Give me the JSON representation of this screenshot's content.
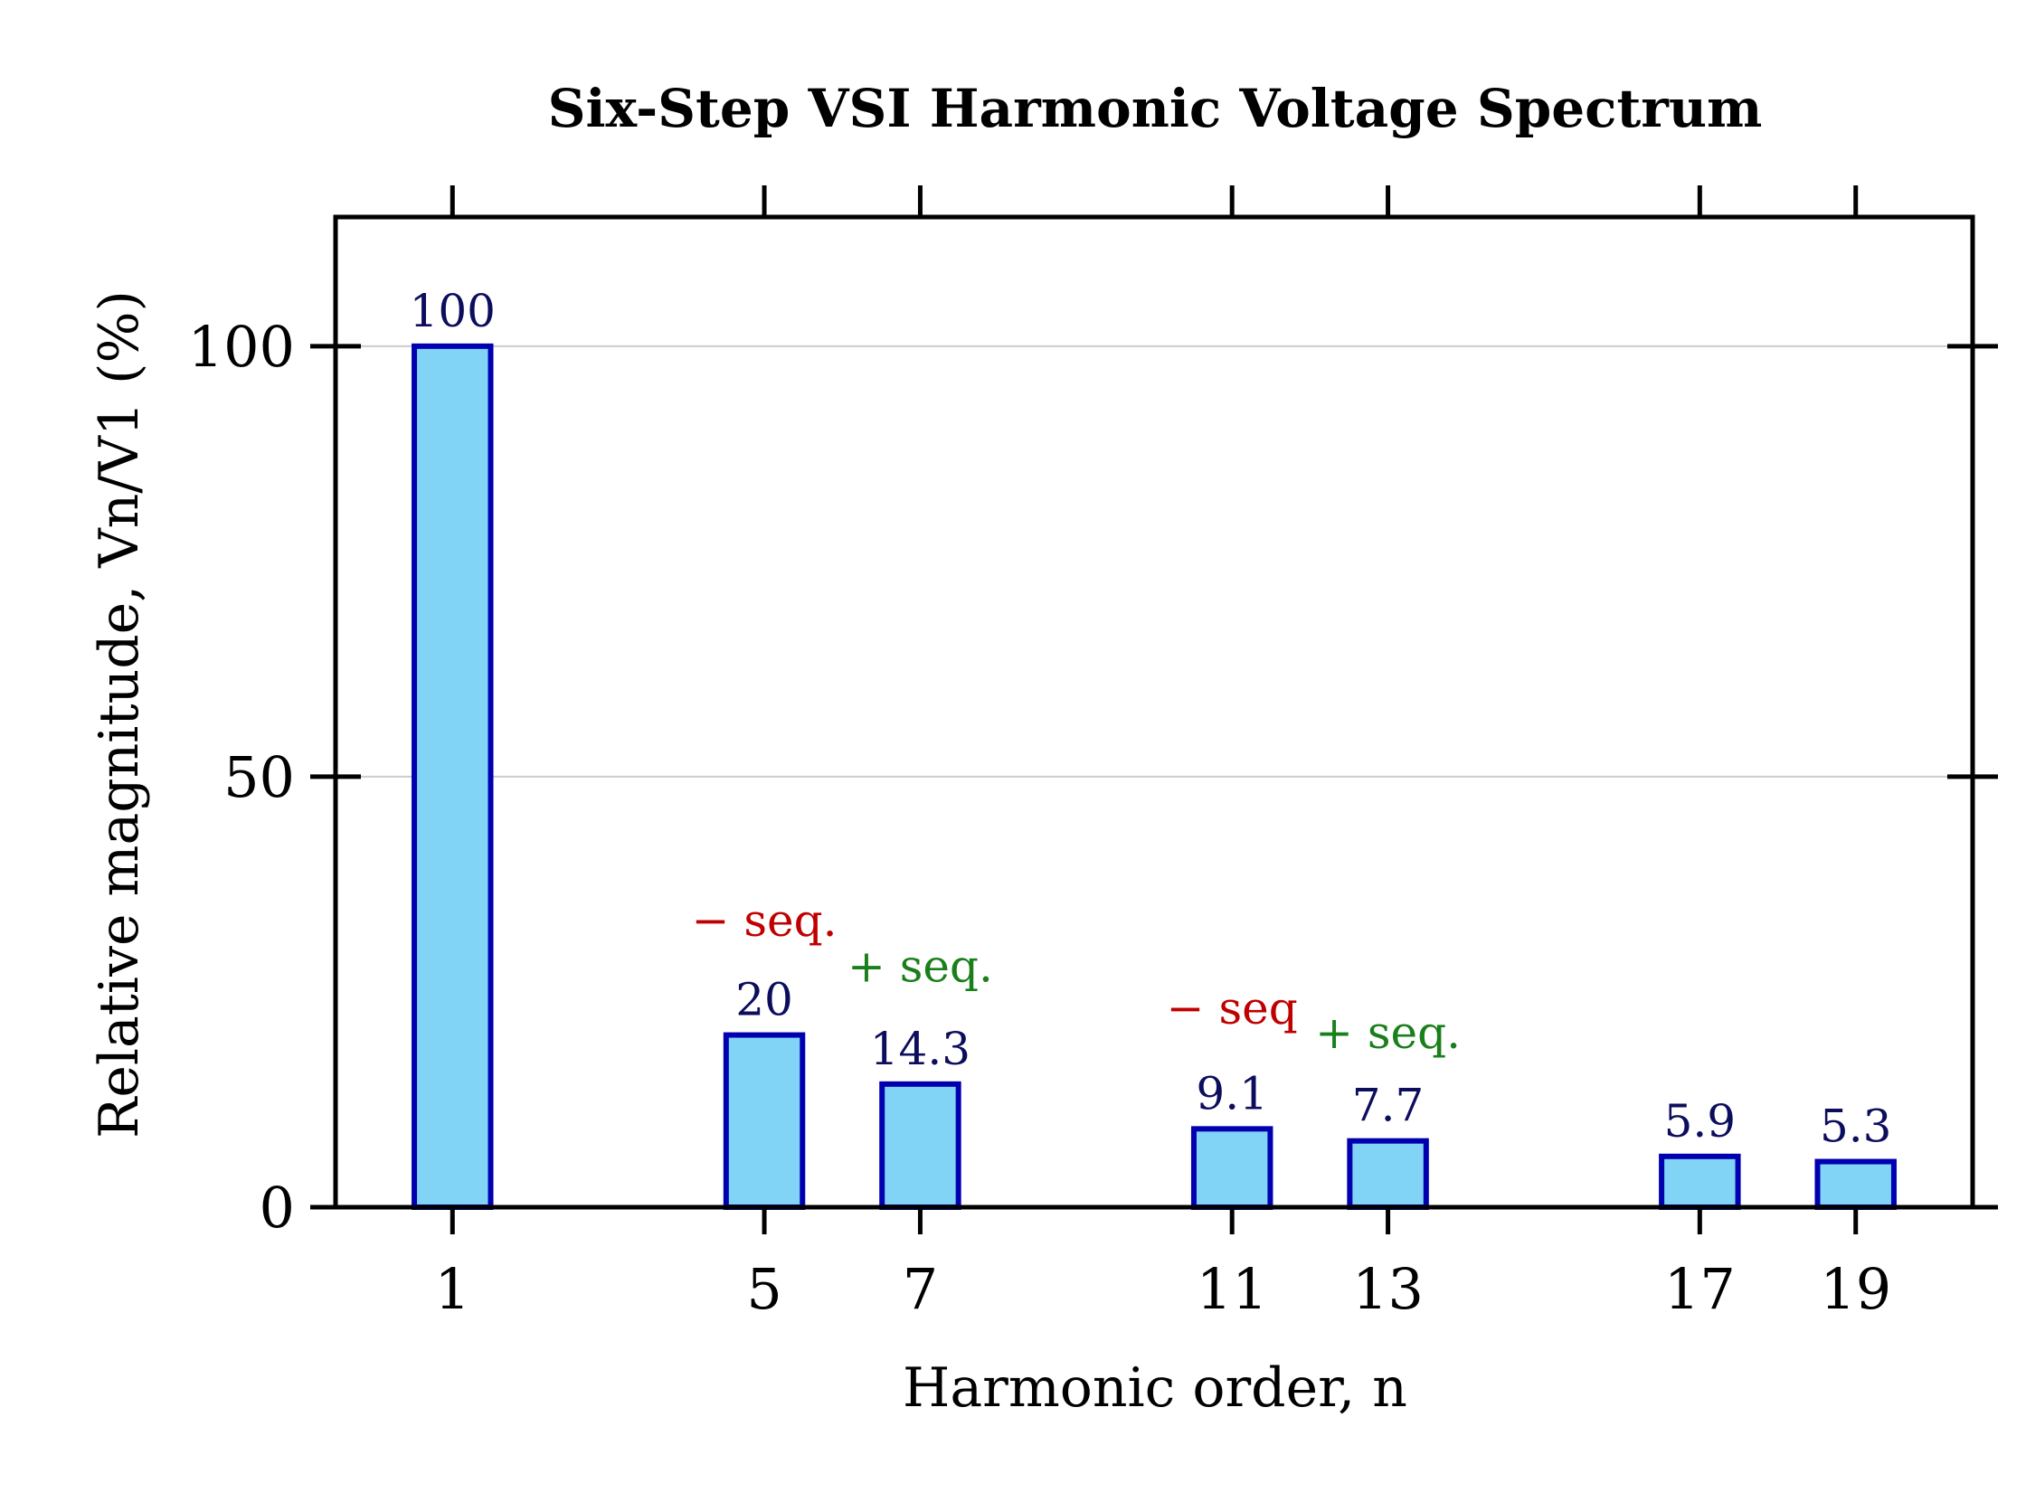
{
  "chart_data": {
    "type": "bar",
    "title": "Six-Step VSI Harmonic Voltage Spectrum",
    "xlabel": "Harmonic order, n",
    "ylabel": "Relative magnitude, Vn/V1 (%)",
    "categories": [
      1,
      5,
      7,
      11,
      13,
      17,
      19
    ],
    "values": [
      100,
      20,
      14.3,
      9.1,
      7.7,
      5.9,
      5.3
    ],
    "data_labels": [
      "100",
      "20",
      "14.3",
      "9.1",
      "7.7",
      "5.9",
      "5.3"
    ],
    "xlim": [
      -0.5,
      20.5
    ],
    "ylim": [
      0,
      115
    ],
    "xticks": [
      1,
      5,
      7,
      11,
      13,
      17,
      19
    ],
    "yticks": [
      0,
      50,
      100
    ],
    "grid": "horizontal",
    "bar_fill": "#81d4f5",
    "bar_edge": "#0000b0",
    "label_color": "#0d0d5e",
    "annotations": [
      {
        "text": "− seq.",
        "x": 5,
        "y": 31.5,
        "color": "#c00000"
      },
      {
        "text": "+ seq.",
        "x": 7,
        "y": 26.2,
        "color": "#1a7f1a"
      },
      {
        "text": "− seq",
        "x": 11,
        "y": 21.3,
        "color": "#c00000"
      },
      {
        "text": "+ seq.",
        "x": 13,
        "y": 18.5,
        "color": "#1a7f1a"
      }
    ]
  }
}
